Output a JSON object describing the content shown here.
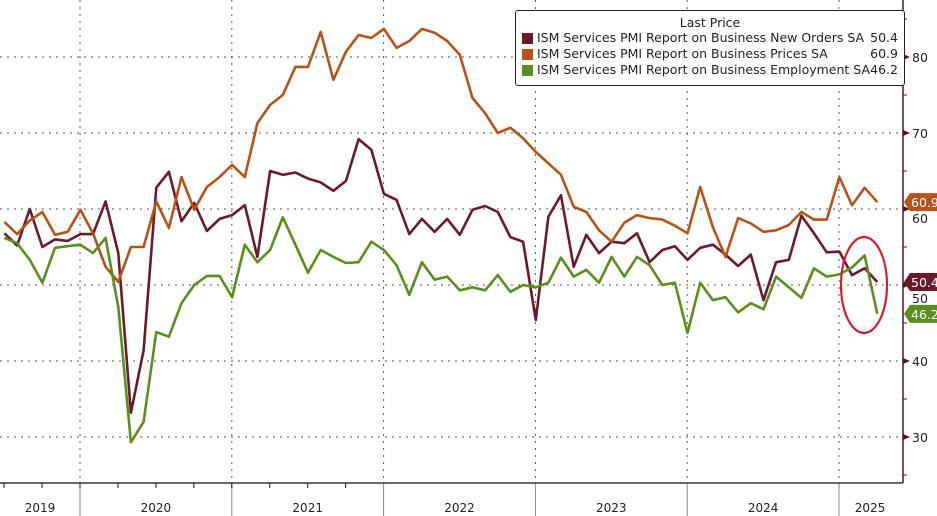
{
  "chart_data": {
    "type": "line",
    "title": "",
    "legend_title": "Last Price",
    "legend_position": "top-right",
    "xlabel": "",
    "ylabel": "",
    "x_start": "2019-06",
    "x_end": "2025-03",
    "x_ticks": [
      "2019",
      "2020",
      "2021",
      "2022",
      "2023",
      "2024",
      "2025"
    ],
    "y_ticks": [
      "30",
      "40",
      "50",
      "60",
      "70",
      "80"
    ],
    "ylim": [
      24.5,
      86
    ],
    "y_axis_side": "right",
    "grid": true,
    "series": [
      {
        "name": "ISM Services PMI Report on Business New Orders SA",
        "last": "50.4",
        "color": "#6b1a2a",
        "values": [
          56.8,
          55.2,
          60.0,
          55.0,
          56.0,
          55.8,
          56.7,
          56.7,
          61.0,
          54.2,
          33.2,
          41.4,
          62.8,
          64.9,
          58.4,
          60.8,
          57.1,
          58.7,
          59.2,
          60.5,
          53.7,
          65.0,
          64.5,
          64.8,
          64.0,
          63.5,
          62.4,
          63.7,
          69.2,
          67.8,
          62.0,
          61.2,
          56.7,
          58.7,
          57.0,
          58.7,
          56.6,
          59.9,
          60.4,
          59.6,
          56.3,
          55.7,
          45.4,
          59.0,
          61.8,
          52.4,
          56.6,
          54.2,
          55.7,
          55.5,
          56.8,
          53.0,
          54.6,
          55.1,
          53.3,
          54.9,
          55.3,
          54.0,
          52.5,
          54.0,
          48.0,
          53.0,
          53.3,
          59.1,
          56.8,
          54.3,
          54.4,
          51.3,
          52.2,
          50.4
        ]
      },
      {
        "name": "ISM Services PMI Report on Business Prices SA",
        "last": "60.9",
        "color": "#b5531a",
        "values": [
          58.3,
          56.7,
          58.5,
          59.6,
          56.6,
          57.0,
          59.9,
          56.8,
          52.4,
          50.4,
          55.0,
          55.0,
          61.0,
          57.5,
          64.2,
          59.9,
          62.9,
          64.2,
          65.8,
          64.2,
          71.3,
          73.7,
          75.0,
          78.7,
          78.7,
          83.3,
          77.0,
          80.7,
          82.9,
          82.5,
          83.7,
          81.2,
          82.1,
          83.7,
          83.2,
          82.1,
          80.3,
          74.6,
          72.6,
          70.0,
          70.7,
          69.3,
          67.5,
          66.0,
          64.5,
          60.3,
          59.6,
          57.2,
          55.7,
          58.2,
          59.2,
          58.8,
          58.6,
          57.8,
          56.8,
          62.9,
          57.6,
          53.7,
          58.8,
          58.1,
          57.0,
          57.2,
          57.9,
          59.6,
          58.6,
          58.6,
          64.2,
          60.5,
          62.8,
          60.9
        ]
      },
      {
        "name": "ISM Services PMI Report on Business Employment SA",
        "last": "46.2",
        "color": "#5a8f1e",
        "values": [
          56.2,
          55.5,
          53.3,
          50.3,
          54.9,
          55.1,
          55.3,
          54.2,
          56.2,
          47.1,
          29.3,
          32.0,
          43.8,
          43.2,
          47.6,
          50.0,
          51.2,
          51.2,
          48.4,
          55.3,
          53.0,
          54.6,
          58.9,
          55.3,
          51.6,
          54.6,
          53.7,
          52.9,
          53.0,
          55.7,
          54.6,
          52.6,
          48.7,
          53.0,
          50.7,
          51.1,
          49.3,
          49.7,
          49.3,
          51.3,
          49.1,
          50.0,
          49.7,
          50.3,
          53.6,
          51.1,
          52.0,
          50.3,
          53.7,
          51.1,
          53.7,
          52.6,
          50.0,
          50.3,
          43.7,
          50.3,
          48.0,
          48.4,
          46.4,
          47.6,
          46.8,
          51.1,
          49.7,
          48.3,
          52.2,
          51.1,
          51.4,
          52.3,
          53.9,
          46.2
        ]
      }
    ],
    "annotations": [
      {
        "type": "ellipse-highlight",
        "color": "#d0202a",
        "target": "2025 latest values"
      }
    ]
  }
}
